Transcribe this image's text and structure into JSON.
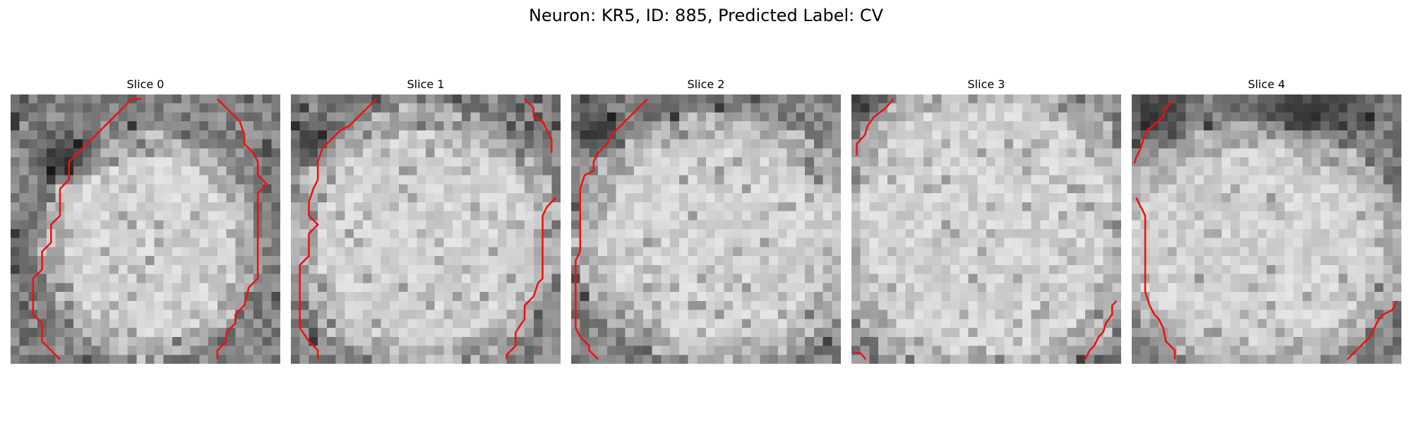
{
  "figure": {
    "title": "Neuron: KR5, ID: 885, Predicted Label: CV"
  },
  "colors": {
    "contour": "#ee1111",
    "background": "#ffffff"
  },
  "panels": [
    {
      "title": "Slice 0"
    },
    {
      "title": "Slice 1"
    },
    {
      "title": "Slice 2"
    },
    {
      "title": "Slice 3"
    },
    {
      "title": "Slice 4"
    }
  ]
}
